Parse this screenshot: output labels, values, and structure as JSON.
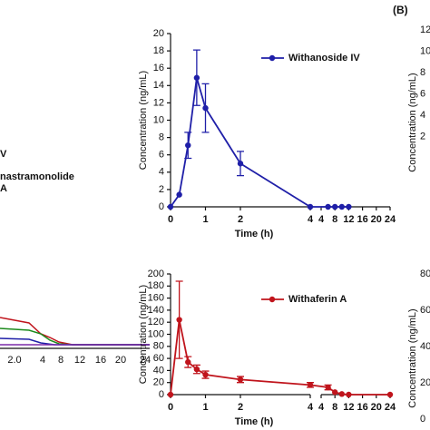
{
  "panel_label": "(B)",
  "chart_data": [
    {
      "type": "line",
      "y_label": "Concentration (ng/mL)",
      "x_label": "Time (h)",
      "x": [
        0,
        0.25,
        0.5,
        0.75,
        1,
        2,
        4,
        6,
        8,
        10,
        12
      ],
      "series": [
        {
          "name": "Withanoside IV",
          "color": "#1f1fa8",
          "values": [
            0,
            1.4,
            7.1,
            14.9,
            11.4,
            5.0,
            0,
            0,
            0,
            0,
            0
          ],
          "errors": [
            null,
            null,
            1.5,
            3.2,
            2.8,
            1.4,
            null,
            null,
            null,
            null,
            null
          ]
        }
      ],
      "ylim": [
        0,
        20
      ],
      "yticks": [
        0,
        2,
        4,
        6,
        8,
        10,
        12,
        14,
        16,
        18,
        20
      ],
      "x_segments": [
        {
          "xlim": [
            0,
            4
          ],
          "xticks": [
            0,
            1,
            2,
            4
          ]
        },
        {
          "xlim": [
            4,
            24
          ],
          "xticks": [
            4,
            8,
            12,
            16,
            20,
            24
          ]
        }
      ]
    },
    {
      "type": "line",
      "y_label": "Concentration (ng/mL)",
      "x_label": "Time (h)",
      "x": [
        0,
        0.25,
        0.5,
        0.75,
        1,
        2,
        4,
        6,
        8,
        10,
        12,
        24
      ],
      "series": [
        {
          "name": "Withaferin A",
          "color": "#c0141c",
          "values": [
            0,
            124,
            54,
            42,
            33,
            25,
            16,
            12,
            4,
            1,
            0,
            0
          ],
          "errors": [
            null,
            64,
            9,
            7,
            6,
            5,
            4,
            4,
            null,
            null,
            null,
            null
          ]
        }
      ],
      "ylim": [
        0,
        200
      ],
      "yticks": [
        0,
        20,
        40,
        60,
        80,
        100,
        120,
        140,
        160,
        180,
        200
      ],
      "x_segments": [
        {
          "xlim": [
            0,
            4
          ],
          "xticks": [
            0,
            1,
            2,
            4
          ]
        },
        {
          "xlim": [
            4,
            24
          ],
          "xticks": [
            4,
            8,
            12,
            16,
            20,
            24
          ]
        }
      ]
    }
  ],
  "left_fragment": {
    "legend": [
      "V",
      "nastramonolide",
      "A"
    ],
    "xticks": [
      "2.0",
      "4",
      "8",
      "12",
      "16",
      "20",
      "24"
    ]
  },
  "right_fragment": {
    "top_ticks": [
      "12",
      "10",
      "8",
      "6",
      "4",
      "2"
    ],
    "bottom_ticks": [
      "80",
      "60",
      "40",
      "20",
      "0"
    ],
    "y_label": "Concentration (ng/mL)"
  }
}
